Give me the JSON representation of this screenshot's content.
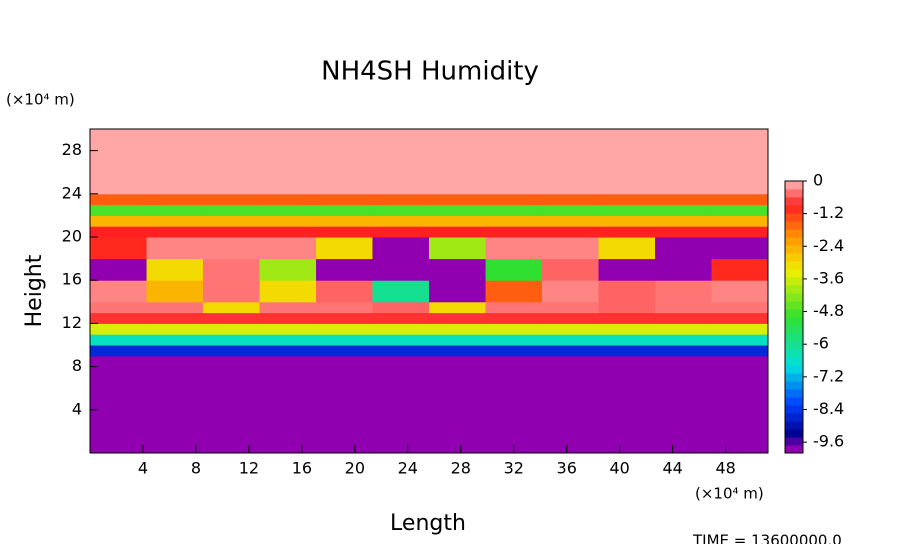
{
  "chart_data": {
    "type": "heatmap",
    "title": "NH4SH Humidity",
    "xlabel": "Length",
    "ylabel": "Height",
    "x_unit": "(×10⁴ m)",
    "y_unit": "(×10⁴ m)",
    "footer": "TIME = 13600000.0",
    "xlim": [
      0,
      51.2
    ],
    "ylim": [
      0,
      30
    ],
    "xticks": [
      4,
      8,
      12,
      16,
      20,
      24,
      28,
      32,
      36,
      40,
      44,
      48
    ],
    "yticks": [
      4,
      8,
      12,
      16,
      20,
      24,
      28
    ],
    "zlim": [
      -10,
      0
    ],
    "zticks": [
      0,
      -1.2,
      -2.4,
      -3.6,
      -4.8,
      -6,
      -7.2,
      -8.4,
      -9.6
    ],
    "colormap": [
      {
        "value": 0,
        "color": "#ffb8b8"
      },
      {
        "value": -0.9,
        "color": "#ff2020"
      },
      {
        "value": -2,
        "color": "#ff9000"
      },
      {
        "value": -3.3,
        "color": "#f0f000"
      },
      {
        "value": -5,
        "color": "#30e030"
      },
      {
        "value": -6.8,
        "color": "#00e0e0"
      },
      {
        "value": -8.2,
        "color": "#0040ff"
      },
      {
        "value": -9.3,
        "color": "#000090"
      },
      {
        "value": -9.8,
        "color": "#9000b0"
      },
      {
        "value": -10,
        "color": "#9000b0"
      }
    ],
    "x_edges": [
      0,
      4.27,
      8.53,
      12.8,
      17.07,
      21.33,
      25.6,
      29.87,
      34.13,
      38.4,
      42.67,
      46.93,
      51.2
    ],
    "y_edges": [
      0,
      8,
      9,
      10,
      11,
      12,
      13,
      14,
      16,
      18,
      20,
      21,
      22,
      23,
      24,
      30
    ],
    "z": [
      [
        -10,
        -10,
        -10,
        -10,
        -10,
        -10,
        -10,
        -10,
        -10,
        -10,
        -10,
        -10
      ],
      [
        -9.8,
        -9.8,
        -9.8,
        -9.8,
        -9.8,
        -9.8,
        -9.8,
        -9.8,
        -9.8,
        -9.8,
        -9.8,
        -9.8
      ],
      [
        -8.6,
        -8.6,
        -8.6,
        -8.6,
        -8.6,
        -8.6,
        -8.6,
        -8.6,
        -8.6,
        -8.6,
        -8.6,
        -8.6
      ],
      [
        -6.5,
        -6.5,
        -6.5,
        -6.5,
        -6.5,
        -6.5,
        -6.5,
        -6.5,
        -6.5,
        -6.5,
        -6.5,
        -6.5
      ],
      [
        -3.5,
        -3.5,
        -3.5,
        -3.5,
        -3.5,
        -3.5,
        -3.5,
        -3.5,
        -3.5,
        -3.5,
        -3.5,
        -3.5
      ],
      [
        -0.8,
        -0.8,
        -0.8,
        -0.8,
        -0.8,
        -0.8,
        -0.8,
        -0.8,
        -0.8,
        -0.8,
        -0.8,
        -0.8
      ],
      [
        -0.4,
        -0.4,
        -3,
        -0.4,
        -0.4,
        -0.5,
        -3,
        -0.4,
        -0.4,
        -0.5,
        -0.4,
        -0.4
      ],
      [
        -0.3,
        -2.5,
        -0.4,
        -3,
        -0.5,
        -6,
        -10,
        -1.5,
        -0.3,
        -0.5,
        -0.4,
        -0.3
      ],
      [
        -10,
        -3,
        -0.4,
        -4,
        -10,
        -10,
        -10,
        -5,
        -0.5,
        -10,
        -10,
        -1
      ],
      [
        -1,
        -0.3,
        -0.3,
        -0.3,
        -3,
        -10,
        -4,
        -0.3,
        -0.3,
        -3,
        -10,
        -10
      ],
      [
        -0.9,
        -0.9,
        -0.9,
        -0.9,
        -0.9,
        -0.9,
        -0.9,
        -0.9,
        -0.9,
        -0.9,
        -0.9,
        -0.9
      ],
      [
        -2.5,
        -2.5,
        -2.5,
        -2.5,
        -2.5,
        -2.5,
        -2.5,
        -2.5,
        -2.5,
        -2.5,
        -2.5,
        -2.5
      ],
      [
        -4.8,
        -4.8,
        -4.8,
        -4.8,
        -4.8,
        -4.8,
        -4.8,
        -4.8,
        -4.8,
        -4.8,
        -4.8,
        -4.8
      ],
      [
        -1.5,
        -1.5,
        -1.5,
        -1.5,
        -1.5,
        -1.5,
        -1.5,
        -1.5,
        -1.5,
        -1.5,
        -1.5,
        -1.5
      ],
      [
        -0.1,
        -0.1,
        -0.1,
        -0.1,
        -0.1,
        -0.1,
        -0.1,
        -0.1,
        -0.1,
        -0.1,
        -0.1,
        -0.1
      ]
    ]
  }
}
